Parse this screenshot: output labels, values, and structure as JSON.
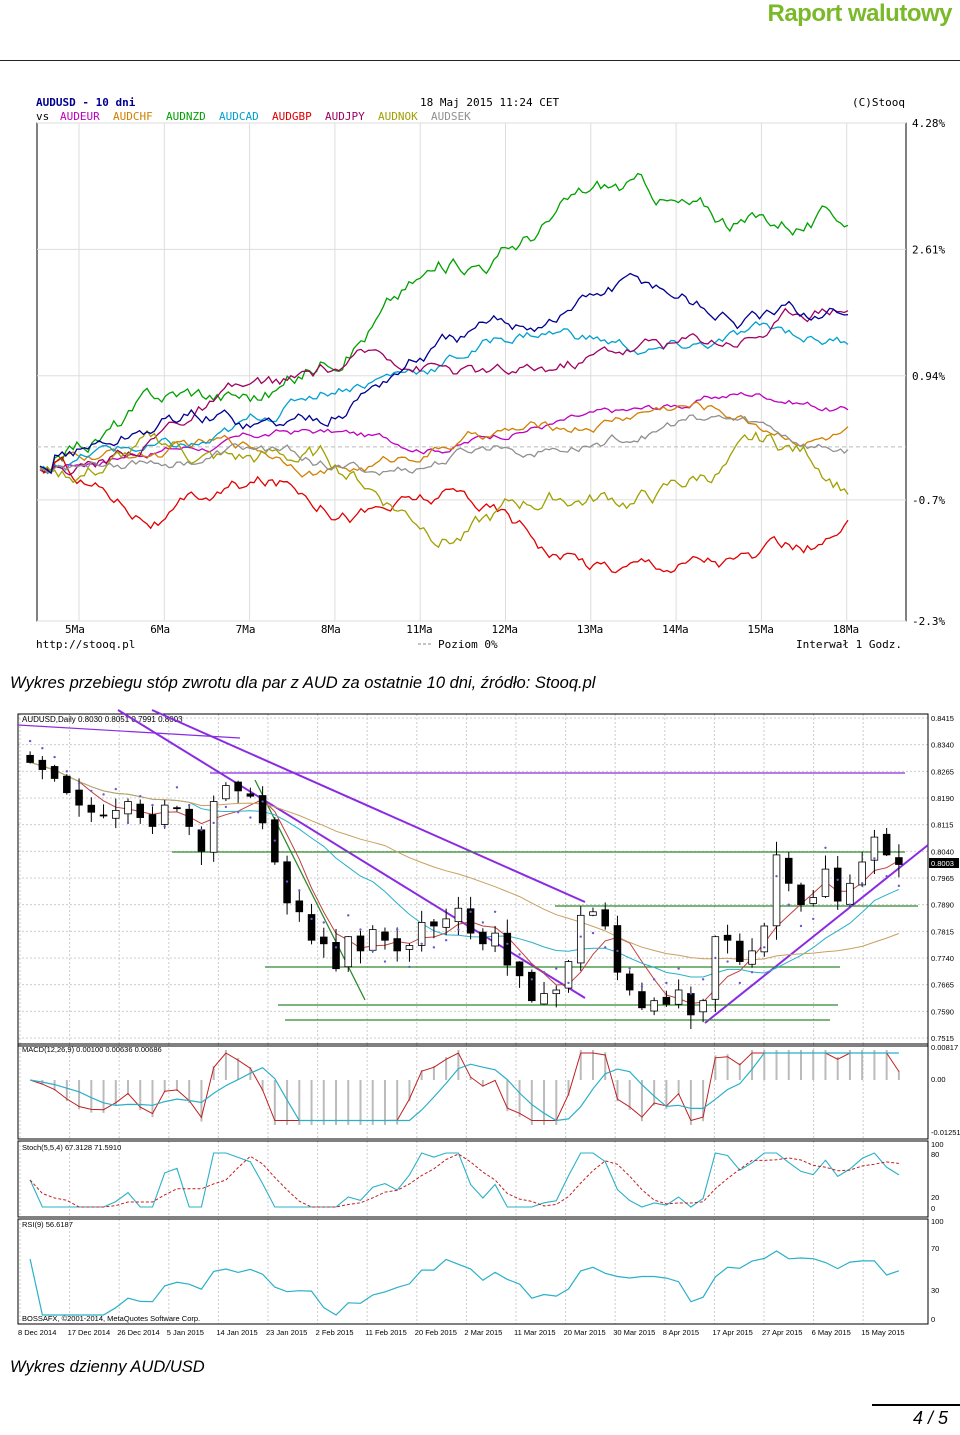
{
  "header": {
    "title": "Raport walutowy",
    "page_number": "4 / 5"
  },
  "caption1": "Wykres przebiegu stóp zwrotu dla par z AUD za ostatnie 10 dni, źródło: Stooq.pl",
  "caption2": "Wykres dzienny AUD/USD",
  "chart_data": [
    {
      "type": "line",
      "header": {
        "symbol": "AUDUSD - 10 dni",
        "datetime": "18 Maj 2015 11:24 CET",
        "source": "(C)Stooq",
        "vs": "vs"
      },
      "series": [
        {
          "name": "AUDEUR",
          "color": "#c000c0",
          "start": -0.3,
          "end": 0.5
        },
        {
          "name": "AUDCHF",
          "color": "#d08000",
          "start": -0.3,
          "end": 0.3
        },
        {
          "name": "AUDNZD",
          "color": "#00a000",
          "start": -0.3,
          "end": 3.3
        },
        {
          "name": "AUDCAD",
          "color": "#00a0d0",
          "start": -0.3,
          "end": 1.6
        },
        {
          "name": "AUDGBP",
          "color": "#e00000",
          "start": -0.3,
          "end": -1.3
        },
        {
          "name": "AUDJPY",
          "color": "#a00060",
          "start": -0.3,
          "end": 1.6
        },
        {
          "name": "AUDNOK",
          "color": "#a0a000",
          "start": -0.3,
          "end": -0.6
        },
        {
          "name": "AUDSEK",
          "color": "#909090",
          "start": -0.3,
          "end": 0.1
        },
        {
          "name": "AUDUSD",
          "color": "#000090",
          "start": -0.3,
          "end": 1.9
        }
      ],
      "x_ticks": [
        "5Ma",
        "6Ma",
        "7Ma",
        "8Ma",
        "11Ma",
        "12Ma",
        "13Ma",
        "14Ma",
        "15Ma",
        "18Ma"
      ],
      "y_ticks": [
        "4.28%",
        "2.61%",
        "0.94%",
        "-0.7%",
        "-2.3%"
      ],
      "ylim": [
        -2.3,
        4.28
      ],
      "footer": {
        "url": "http://stooq.pl",
        "level": "Poziom 0%",
        "interval": "Interwał 1 Godz."
      }
    },
    {
      "type": "candlestick",
      "title": "AUDUSD,Daily  0.8030 0.8051 0.7991 0.8003",
      "x_ticks": [
        "8 Dec 2014",
        "17 Dec 2014",
        "26 Dec 2014",
        "5 Jan 2015",
        "14 Jan 2015",
        "23 Jan 2015",
        "2 Feb 2015",
        "11 Feb 2015",
        "20 Feb 2015",
        "2 Mar 2015",
        "11 Mar 2015",
        "20 Mar 2015",
        "30 Mar 2015",
        "8 Apr 2015",
        "17 Apr 2015",
        "27 Apr 2015",
        "6 May 2015",
        "15 May 2015"
      ],
      "y_ticks": [
        "0.8415",
        "0.8340",
        "0.8265",
        "0.8190",
        "0.8115",
        "0.8040",
        "0.7965",
        "0.7890",
        "0.7815",
        "0.7740",
        "0.7665",
        "0.7590",
        "0.7515"
      ],
      "last_price": "0.8003",
      "ylim": [
        0.7515,
        0.8415
      ],
      "closes": [
        0.829,
        0.827,
        0.8245,
        0.8205,
        0.817,
        0.815,
        0.814,
        0.8155,
        0.818,
        0.8135,
        0.811,
        0.817,
        0.816,
        0.811,
        0.804,
        0.818,
        0.8225,
        0.821,
        0.8195,
        0.812,
        0.801,
        0.7895,
        0.787,
        0.779,
        0.778,
        0.771,
        0.78,
        0.776,
        0.782,
        0.779,
        0.776,
        0.7775,
        0.784,
        0.783,
        0.785,
        0.788,
        0.781,
        0.778,
        0.781,
        0.772,
        0.769,
        0.762,
        0.764,
        0.765,
        0.773,
        0.786,
        0.787,
        0.783,
        0.77,
        0.765,
        0.76,
        0.762,
        0.761,
        0.765,
        0.758,
        0.762,
        0.78,
        0.779,
        0.773,
        0.776,
        0.783,
        0.803,
        0.795,
        0.789,
        0.791,
        0.799,
        0.79,
        0.795,
        0.801,
        0.808,
        0.803,
        0.8003
      ],
      "panels": [
        {
          "name": "macd",
          "label": "MACD(12,26,9) 0.00100 0.00636 0.00686",
          "y_ticks": [
            "0.00817",
            "0.00",
            "-0.01251"
          ]
        },
        {
          "name": "stoch",
          "label": "Stoch(5,5,4) 67.3128 71.5910",
          "y_ticks": [
            "100",
            "80",
            "20",
            "0"
          ]
        },
        {
          "name": "rsi",
          "label": "RSI(9) 56.6187",
          "y_ticks": [
            "100",
            "70",
            "30",
            "0"
          ]
        }
      ],
      "footer": "BOSSAFX, ©2001-2014, MetaQuotes Software Corp."
    }
  ]
}
